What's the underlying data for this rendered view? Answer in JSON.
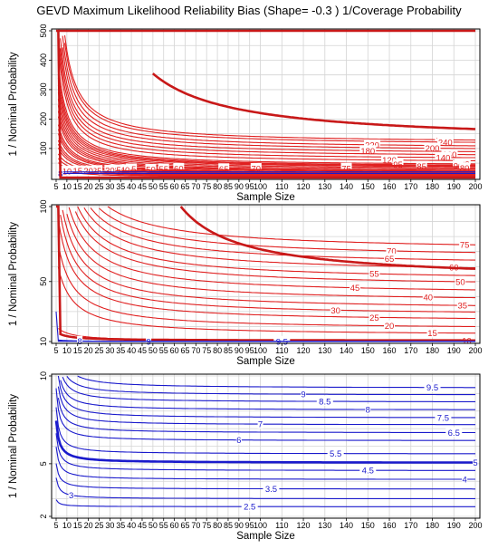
{
  "title": "GEVD Maximum Likelihood Reliability Bias (Shape= -0.3 ) 1/Coverage Probability",
  "colors": {
    "red": "#e02020",
    "blue": "#1a1acc",
    "grid": "#d4d4d4"
  },
  "chart_data": [
    {
      "type": "line",
      "title": "GEVD Maximum Likelihood Reliability Bias (Shape= -0.3 ) 1/Coverage Probability",
      "xlabel": "Sample Size",
      "ylabel": "1 / Nominal Probability",
      "xlim": [
        5,
        200
      ],
      "ylim": [
        1,
        500
      ],
      "x_ticks": [
        5,
        10,
        15,
        20,
        25,
        30,
        35,
        40,
        45,
        50,
        55,
        60,
        65,
        70,
        75,
        80,
        85,
        90,
        95,
        100,
        110,
        120,
        130,
        140,
        150,
        160,
        170,
        180,
        190,
        200
      ],
      "y_ticks": [
        100,
        200,
        300,
        400,
        500
      ],
      "grid": true,
      "contour_levels_labeled": [
        "260",
        "240",
        "220",
        "200",
        "180",
        "160",
        "140",
        "120",
        "100",
        "95",
        "90",
        "85",
        "80",
        "75",
        "70",
        "65",
        "60",
        "55",
        "50",
        "45",
        "40",
        "35",
        "30",
        "25",
        "20",
        "15",
        "10",
        "9",
        "8"
      ]
    },
    {
      "type": "line",
      "xlabel": "Sample Size",
      "ylabel": "1 / Nominal Probability",
      "xlim": [
        5,
        200
      ],
      "ylim": [
        10,
        100
      ],
      "x_ticks": [
        5,
        10,
        15,
        20,
        25,
        30,
        35,
        40,
        45,
        50,
        55,
        60,
        65,
        70,
        75,
        80,
        85,
        90,
        95,
        100,
        110,
        120,
        130,
        140,
        150,
        160,
        170,
        180,
        190,
        200
      ],
      "y_ticks": [
        10,
        50,
        100
      ],
      "grid": true,
      "contour_levels_labeled": [
        "75",
        "70",
        "65",
        "60",
        "55",
        "50",
        "45",
        "40",
        "35",
        "30",
        "25",
        "20",
        "15",
        "10",
        "9.5",
        "9",
        "8"
      ]
    },
    {
      "type": "line",
      "xlabel": "Sample Size",
      "ylabel": "1 / Nominal Probability",
      "xlim": [
        5,
        200
      ],
      "ylim": [
        2,
        10
      ],
      "x_ticks": [
        5,
        10,
        15,
        20,
        25,
        30,
        35,
        40,
        45,
        50,
        55,
        60,
        65,
        70,
        75,
        80,
        85,
        90,
        95,
        100,
        110,
        120,
        130,
        140,
        150,
        160,
        170,
        180,
        190,
        200
      ],
      "y_ticks": [
        2,
        5,
        10
      ],
      "grid": true,
      "contour_levels_labeled": [
        "9.5",
        "9",
        "8.5",
        "8",
        "7.5",
        "7",
        "6.5",
        "6",
        "5.5",
        "5",
        "4.5",
        "4",
        "3.5",
        "3",
        "2.5"
      ]
    }
  ]
}
